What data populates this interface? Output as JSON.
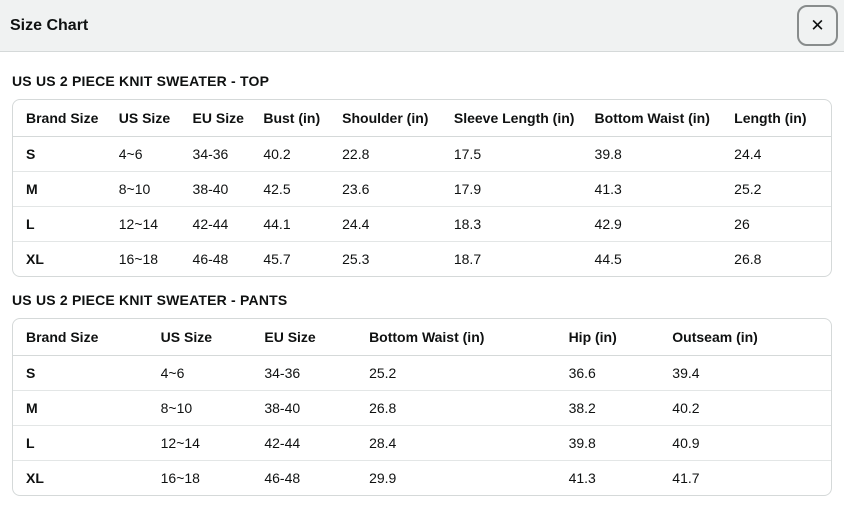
{
  "modal": {
    "title": "Size Chart",
    "close_icon": "✕"
  },
  "colors": {
    "header_bg": "#f0f2f2",
    "border": "#d5d9d9",
    "row_divider": "#e3e6e6",
    "text": "#0f1111"
  },
  "sections": [
    {
      "title": "US US 2 PIECE KNIT SWEATER - TOP",
      "columns": [
        "Brand Size",
        "US Size",
        "EU Size",
        "Bust (in)",
        "Shoulder (in)",
        "Sleeve Length (in)",
        "Bottom Waist (in)",
        "Length (in)"
      ],
      "col_widths": [
        "11.34%",
        "9.02%",
        "8.66%",
        "9.63%",
        "13.66%",
        "17.20%",
        "17.07%",
        "13.42%"
      ],
      "rows": [
        [
          "S",
          "4~6",
          "34-36",
          "40.2",
          "22.8",
          "17.5",
          "39.8",
          "24.4"
        ],
        [
          "M",
          "8~10",
          "38-40",
          "42.5",
          "23.6",
          "17.9",
          "41.3",
          "25.2"
        ],
        [
          "L",
          "12~14",
          "42-44",
          "44.1",
          "24.4",
          "18.3",
          "42.9",
          "26"
        ],
        [
          "XL",
          "16~18",
          "46-48",
          "45.7",
          "25.3",
          "18.7",
          "44.5",
          "26.8"
        ]
      ]
    },
    {
      "title": "US US 2 PIECE KNIT SWEATER - PANTS",
      "columns": [
        "Brand Size",
        "US Size",
        "EU Size",
        "Bottom Waist (in)",
        "Hip (in)",
        "Outseam (in)"
      ],
      "col_widths": [
        "16.46%",
        "12.68%",
        "12.80%",
        "24.39%",
        "12.68%",
        "20.99%"
      ],
      "rows": [
        [
          "S",
          "4~6",
          "34-36",
          "25.2",
          "36.6",
          "39.4"
        ],
        [
          "M",
          "8~10",
          "38-40",
          "26.8",
          "38.2",
          "40.2"
        ],
        [
          "L",
          "12~14",
          "42-44",
          "28.4",
          "39.8",
          "40.9"
        ],
        [
          "XL",
          "16~18",
          "46-48",
          "29.9",
          "41.3",
          "41.7"
        ]
      ]
    }
  ]
}
